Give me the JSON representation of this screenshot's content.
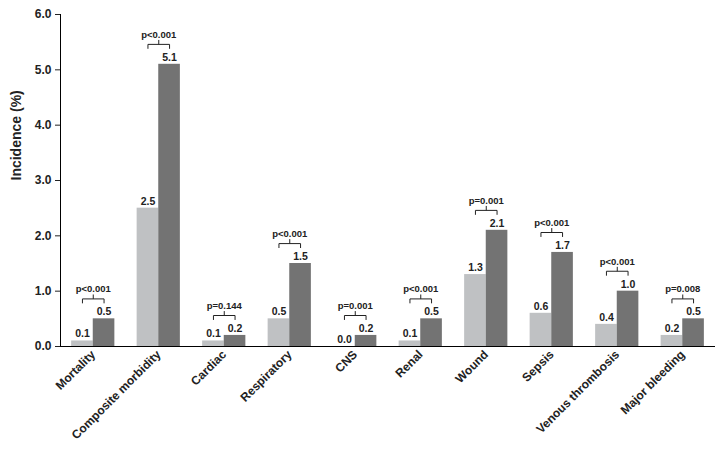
{
  "chart_data": {
    "type": "bar",
    "categories": [
      "Mortality",
      "Composite morbidity",
      "Cardiac",
      "Respiratory",
      "CNS",
      "Renal",
      "Wound",
      "Sepsis",
      "Venous thrombosis",
      "Major bleeding"
    ],
    "series": [
      {
        "color": "#bfc1c3",
        "values": [
          0.1,
          2.5,
          0.1,
          0.5,
          0.0,
          0.1,
          1.3,
          0.6,
          0.4,
          0.2
        ],
        "value_labels": [
          "0.1",
          "2.5",
          "0.1",
          "0.5",
          "0.0",
          "0.1",
          "1.3",
          "0.6",
          "0.4",
          "0.2"
        ]
      },
      {
        "color": "#737373",
        "values": [
          0.5,
          5.1,
          0.2,
          1.5,
          0.2,
          0.5,
          2.1,
          1.7,
          1.0,
          0.5
        ],
        "value_labels": [
          "0.5",
          "5.1",
          "0.2",
          "1.5",
          "0.2",
          "0.5",
          "2.1",
          "1.7",
          "1.0",
          "0.5"
        ]
      }
    ],
    "annotations": [
      "p<0.001",
      "p<0.001",
      "p=0.144",
      "p<0.001",
      "p=0.001",
      "p<0.001",
      "p=0.001",
      "p<0.001",
      "p<0.001",
      "p=0.008"
    ],
    "ylabel": "Incidence (%)",
    "ylim": [
      0,
      6
    ],
    "yticks": [
      {
        "value": 0,
        "label": "0.0"
      },
      {
        "value": 1,
        "label": "1.0"
      },
      {
        "value": 2,
        "label": "2.0"
      },
      {
        "value": 3,
        "label": "3.0"
      },
      {
        "value": 4,
        "label": "4.0"
      },
      {
        "value": 5,
        "label": "5.0"
      },
      {
        "value": 6,
        "label": "6.0"
      }
    ],
    "data_labels": true,
    "grid": false
  }
}
